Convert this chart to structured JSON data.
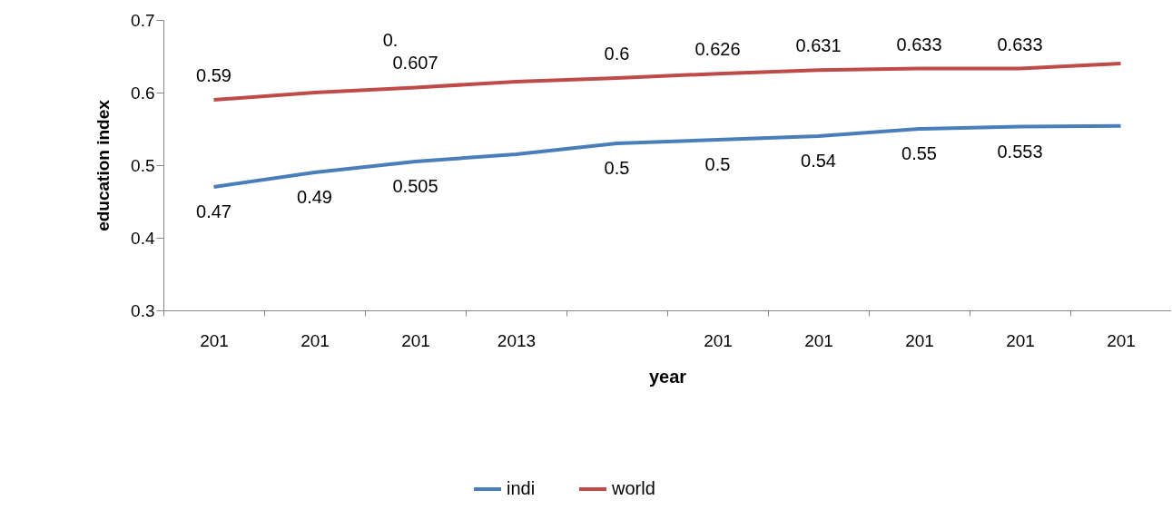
{
  "chart_data": {
    "type": "line",
    "xlabel": "year",
    "ylabel": "education index",
    "categories": [
      "201",
      "201",
      "201",
      "2013",
      null,
      "201",
      "201",
      "201",
      "201",
      "201"
    ],
    "ylim": [
      0.3,
      0.7
    ],
    "yticks": [
      0.3,
      0.4,
      0.5,
      0.6,
      0.7
    ],
    "series": [
      {
        "name": "indi",
        "color": "#4a7ebb",
        "values": [
          0.47,
          0.49,
          0.505,
          0.515,
          0.53,
          0.535,
          0.54,
          0.55,
          0.553,
          0.554
        ],
        "value_labels": [
          "0.47",
          "0.49",
          "0.505",
          null,
          "0.5",
          "0.5",
          "0.54",
          "0.55",
          "0.553",
          null
        ]
      },
      {
        "name": "world",
        "color": "#be4b48",
        "values": [
          0.59,
          0.6,
          0.607,
          0.615,
          0.62,
          0.626,
          0.631,
          0.633,
          0.633,
          0.64
        ],
        "value_labels": [
          "0.59",
          null,
          "0.607",
          null,
          "0.6",
          "0.626",
          "0.631",
          "0.633",
          "0.633",
          null
        ]
      }
    ],
    "annotations": [
      "0."
    ],
    "grid": false,
    "legend": "bottom"
  }
}
